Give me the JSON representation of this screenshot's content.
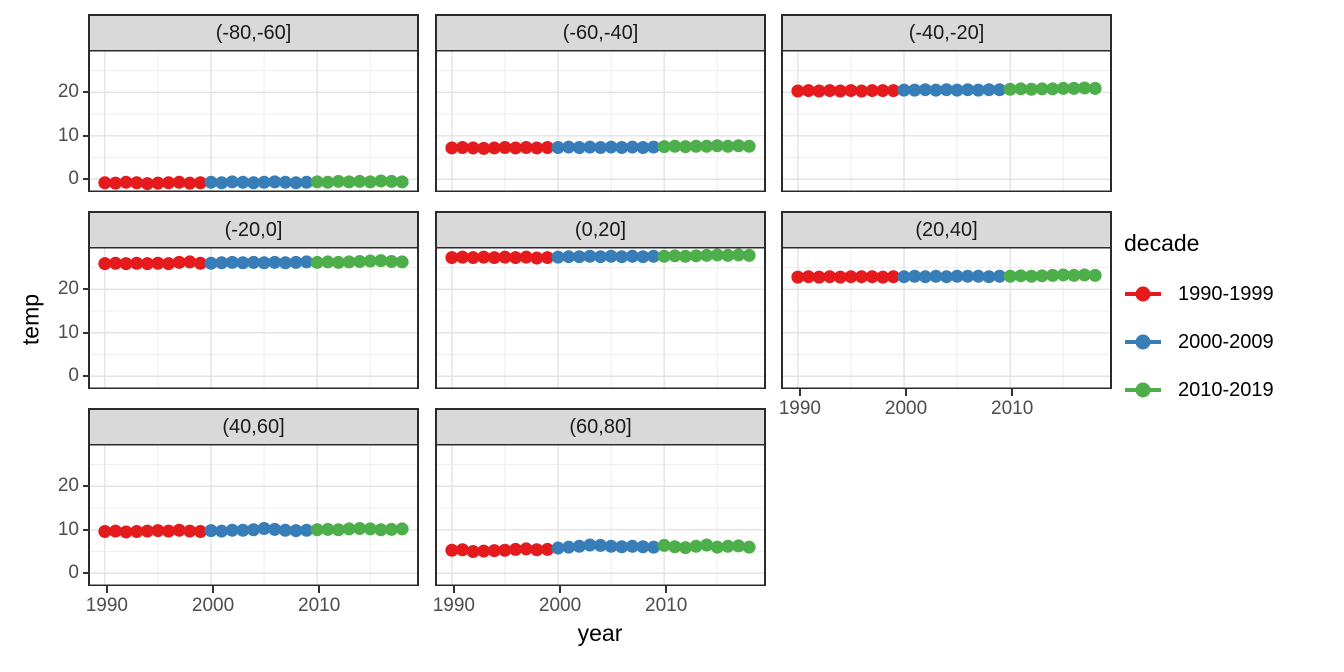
{
  "figure": {
    "ylabel": "temp",
    "xlabel": "year",
    "background": "#ffffff"
  },
  "legend": {
    "title": "decade",
    "entries": [
      {
        "label": "1990-1999",
        "color": "#E41A1C"
      },
      {
        "label": "2000-2009",
        "color": "#377EB8"
      },
      {
        "label": "2010-2019",
        "color": "#4DAF4A"
      }
    ]
  },
  "chart_data": {
    "type": "scatter",
    "title": "",
    "xlabel": "year",
    "ylabel": "temp",
    "legend_title": "decade",
    "legend_position": "right",
    "grid": true,
    "x_ticks": [
      1990,
      2000,
      2010
    ],
    "x_minor_ticks": [
      1995,
      2005,
      2015
    ],
    "y_ticks": [
      0,
      10,
      20
    ],
    "y_minor_ticks": [
      5,
      15,
      25
    ],
    "xlim": [
      1988.6,
      2019.4
    ],
    "ylim": [
      -2.7,
      29.5
    ],
    "x": [
      1990,
      1991,
      1992,
      1993,
      1994,
      1995,
      1996,
      1997,
      1998,
      1999,
      2000,
      2001,
      2002,
      2003,
      2004,
      2005,
      2006,
      2007,
      2008,
      2009,
      2010,
      2011,
      2012,
      2013,
      2014,
      2015,
      2016,
      2017,
      2018
    ],
    "decades": [
      {
        "name": "1990-1999",
        "from": 1990,
        "to": 1999
      },
      {
        "name": "2000-2009",
        "from": 2000,
        "to": 2009
      },
      {
        "name": "2010-2019",
        "from": 2010,
        "to": 2019
      }
    ],
    "facets": [
      {
        "label": "(-80,-60]",
        "values": [
          -0.8,
          -0.9,
          -0.7,
          -0.8,
          -1.0,
          -0.9,
          -0.8,
          -0.7,
          -0.9,
          -0.8,
          -0.7,
          -0.8,
          -0.6,
          -0.7,
          -0.8,
          -0.7,
          -0.6,
          -0.7,
          -0.8,
          -0.7,
          -0.6,
          -0.7,
          -0.5,
          -0.6,
          -0.5,
          -0.6,
          -0.4,
          -0.5,
          -0.6
        ]
      },
      {
        "label": "(-60,-40]",
        "values": [
          7.2,
          7.3,
          7.2,
          7.1,
          7.2,
          7.3,
          7.2,
          7.3,
          7.2,
          7.3,
          7.3,
          7.4,
          7.3,
          7.4,
          7.3,
          7.4,
          7.3,
          7.4,
          7.3,
          7.4,
          7.5,
          7.6,
          7.5,
          7.6,
          7.6,
          7.7,
          7.6,
          7.7,
          7.6
        ]
      },
      {
        "label": "(-40,-20]",
        "values": [
          20.3,
          20.4,
          20.3,
          20.4,
          20.3,
          20.4,
          20.3,
          20.4,
          20.4,
          20.4,
          20.5,
          20.5,
          20.6,
          20.5,
          20.6,
          20.5,
          20.6,
          20.5,
          20.6,
          20.6,
          20.7,
          20.8,
          20.7,
          20.8,
          20.8,
          20.9,
          20.9,
          21.0,
          20.9
        ]
      },
      {
        "label": "(-20,0]",
        "values": [
          25.9,
          26.0,
          25.9,
          26.0,
          25.9,
          26.0,
          25.9,
          26.2,
          26.3,
          26.0,
          26.0,
          26.1,
          26.2,
          26.1,
          26.2,
          26.1,
          26.2,
          26.1,
          26.2,
          26.3,
          26.2,
          26.3,
          26.2,
          26.3,
          26.4,
          26.5,
          26.6,
          26.4,
          26.3
        ]
      },
      {
        "label": "(0,20]",
        "values": [
          27.3,
          27.4,
          27.3,
          27.4,
          27.3,
          27.4,
          27.3,
          27.4,
          27.2,
          27.3,
          27.4,
          27.5,
          27.5,
          27.6,
          27.5,
          27.6,
          27.5,
          27.6,
          27.5,
          27.6,
          27.6,
          27.7,
          27.6,
          27.7,
          27.8,
          27.9,
          27.8,
          27.9,
          27.8
        ]
      },
      {
        "label": "(20,40]",
        "values": [
          22.8,
          22.9,
          22.8,
          22.9,
          22.8,
          22.9,
          22.9,
          22.9,
          22.8,
          22.9,
          22.9,
          23.0,
          22.9,
          23.0,
          22.9,
          23.0,
          23.0,
          23.0,
          22.9,
          23.0,
          23.0,
          23.1,
          23.0,
          23.1,
          23.2,
          23.3,
          23.2,
          23.3,
          23.2
        ]
      },
      {
        "label": "(40,60]",
        "values": [
          9.6,
          9.7,
          9.5,
          9.6,
          9.7,
          9.8,
          9.7,
          9.9,
          9.7,
          9.6,
          9.8,
          9.7,
          9.9,
          9.9,
          10.0,
          10.3,
          10.1,
          9.9,
          9.8,
          9.9,
          10.0,
          10.1,
          10.0,
          10.2,
          10.3,
          10.2,
          10.0,
          10.1,
          10.2
        ]
      },
      {
        "label": "(60,80]",
        "values": [
          5.3,
          5.4,
          5.0,
          5.1,
          5.2,
          5.3,
          5.5,
          5.6,
          5.4,
          5.5,
          5.8,
          6.0,
          6.2,
          6.5,
          6.4,
          6.2,
          6.1,
          6.2,
          6.1,
          6.0,
          6.4,
          6.1,
          5.9,
          6.2,
          6.5,
          6.0,
          6.2,
          6.3,
          6.0
        ]
      }
    ],
    "style": {
      "strip_fill": "#d9d9d9",
      "panel_border": "#2b2b2b",
      "grid_major": "#e3e3e3",
      "grid_minor": "#f0f0f0",
      "tick_label_color": "#4d4d4d",
      "point_radius": 6.5
    }
  }
}
